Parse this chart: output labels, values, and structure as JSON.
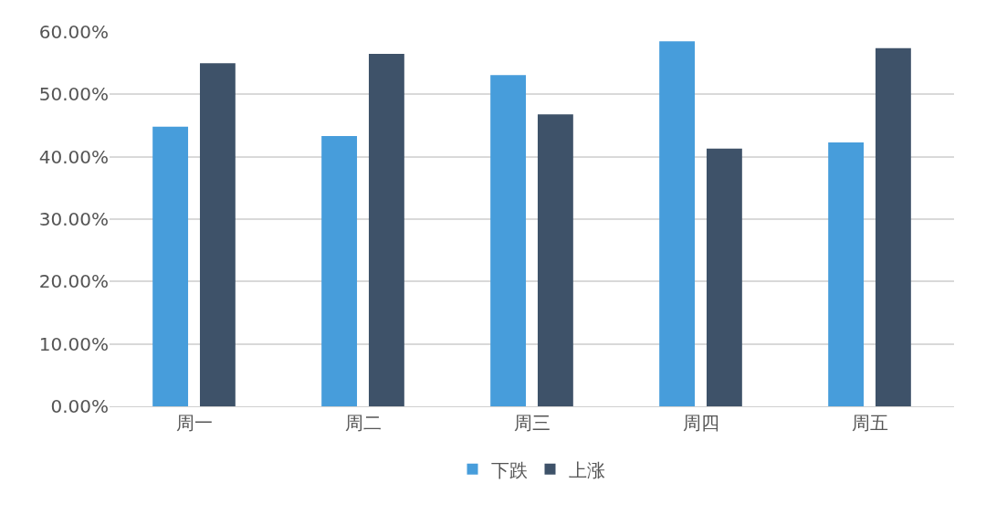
{
  "chart_data": {
    "type": "bar",
    "categories": [
      "周一",
      "周二",
      "周三",
      "周四",
      "周五"
    ],
    "series": [
      {
        "name": "下跌",
        "color": "#479ddb",
        "values": [
          44.8,
          43.3,
          53.1,
          58.5,
          42.3
        ]
      },
      {
        "name": "上涨",
        "color": "#3e5269",
        "values": [
          55.0,
          56.5,
          46.8,
          41.3,
          57.4
        ]
      }
    ],
    "ylim": [
      0,
      60
    ],
    "yticks": [
      {
        "value": 0,
        "label": "0.00%"
      },
      {
        "value": 10,
        "label": "10.00%"
      },
      {
        "value": 20,
        "label": "20.00%"
      },
      {
        "value": 30,
        "label": "30.00%"
      },
      {
        "value": 40,
        "label": "40.00%"
      },
      {
        "value": 50,
        "label": "50.00%"
      },
      {
        "value": 60,
        "label": "60.00%"
      }
    ],
    "grid": "y",
    "legend": "bottom"
  }
}
